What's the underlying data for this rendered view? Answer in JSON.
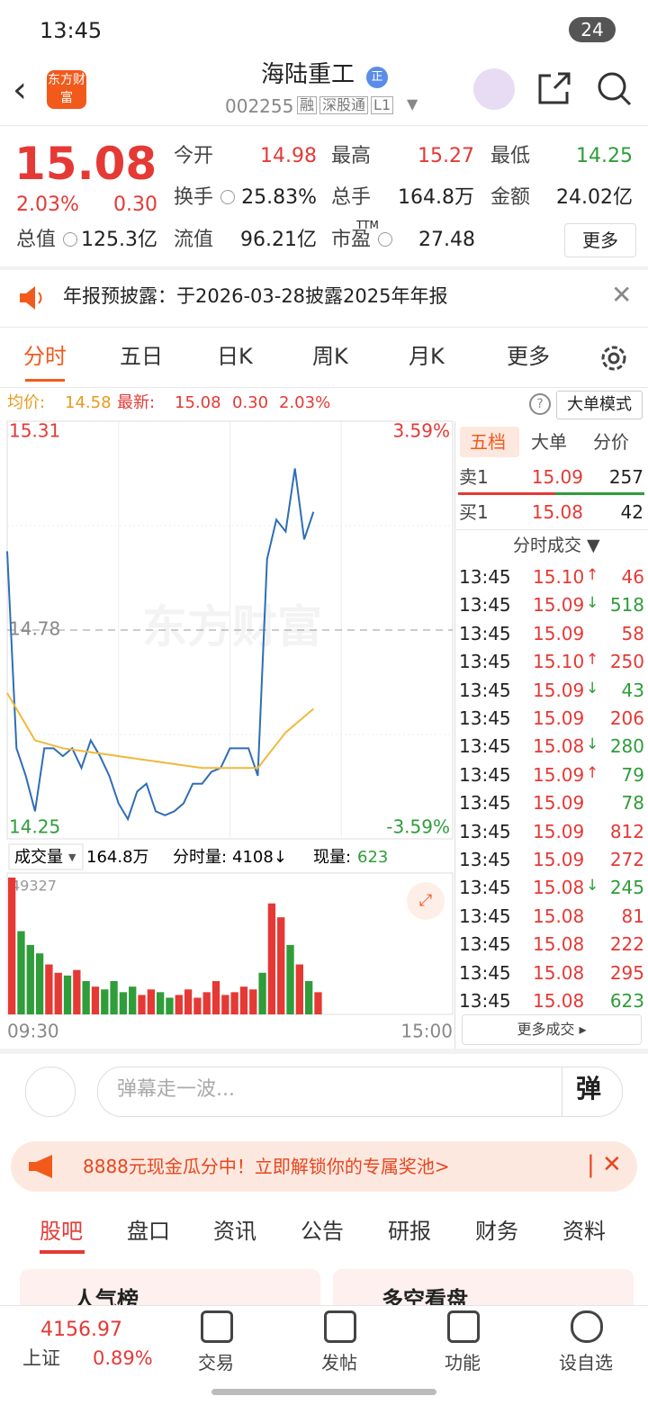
{
  "status": {
    "time": "13:45",
    "battery": "24"
  },
  "header": {
    "logo": "东方财富",
    "title": "海陆重工",
    "badge": "正",
    "code": "002255",
    "tags": [
      "融",
      "深股通",
      "L1"
    ]
  },
  "quote": {
    "price": "15.08",
    "pct": "2.03%",
    "change": "0.30",
    "fields": [
      {
        "label": "今开",
        "value": "14.98",
        "color": "#e53935"
      },
      {
        "label": "最高",
        "value": "15.27",
        "color": "#e53935"
      },
      {
        "label": "最低",
        "value": "14.25",
        "color": "#2e9d3a"
      },
      {
        "label": "换手",
        "value": "25.83%",
        "color": "#222222"
      },
      {
        "label": "总手",
        "value": "164.8万",
        "color": "#222222"
      },
      {
        "label": "金额",
        "value": "24.02亿",
        "color": "#222222"
      },
      {
        "label": "总值",
        "value": "125.3亿",
        "color": "#222222"
      },
      {
        "label": "流值",
        "value": "96.21亿",
        "color": "#222222"
      },
      {
        "label": "市盈",
        "value": "27.48",
        "color": "#222222"
      }
    ],
    "ttm": "TTM",
    "more": "更多"
  },
  "notice": "年报预披露：于2026-03-28披露2025年年报",
  "tabs": [
    "分时",
    "五日",
    "日K",
    "周K",
    "月K",
    "更多"
  ],
  "info": {
    "avg_label": "均价:",
    "avg": "14.58",
    "last_label": "最新:",
    "last": "15.08",
    "change": "0.30",
    "pct": "2.03%",
    "mode": "大单模式"
  },
  "watermark": "东方财富",
  "chart_data": {
    "type": "line",
    "ylim": [
      14.25,
      15.31
    ],
    "yticks": [
      15.31,
      14.78,
      14.25
    ],
    "y2lim": [
      -3.59,
      3.59
    ],
    "y2ticks": [
      {
        "value": 3.59,
        "label": "3.59%"
      },
      {
        "value": -3.59,
        "label": "-3.59%"
      }
    ],
    "xlim": [
      0,
      240
    ],
    "xticks": [
      {
        "value": 0,
        "label": "09:30"
      },
      {
        "value": 240,
        "label": "15:00"
      }
    ],
    "series": [
      {
        "color": "#2f6db5",
        "x": [
          0,
          5,
          10,
          15,
          20,
          25,
          30,
          35,
          40,
          45,
          50,
          55,
          60,
          65,
          70,
          75,
          80,
          85,
          90,
          95,
          100,
          105,
          110,
          115,
          120,
          125,
          130,
          135,
          140,
          145,
          150,
          155,
          160,
          165
        ],
        "values": [
          14.98,
          14.48,
          14.41,
          14.32,
          14.48,
          14.48,
          14.46,
          14.48,
          14.43,
          14.5,
          14.46,
          14.41,
          14.34,
          14.3,
          14.37,
          14.39,
          14.32,
          14.31,
          14.32,
          14.34,
          14.39,
          14.39,
          14.42,
          14.43,
          14.48,
          14.48,
          14.48,
          14.41,
          14.96,
          15.06,
          15.03,
          15.19,
          15.01,
          15.08
        ]
      },
      {
        "color": "#f0b93a",
        "x": [
          0,
          15,
          30,
          45,
          60,
          75,
          90,
          105,
          120,
          135,
          150,
          165
        ],
        "values": [
          14.62,
          14.5,
          14.48,
          14.47,
          14.46,
          14.45,
          14.44,
          14.43,
          14.43,
          14.43,
          14.52,
          14.58
        ]
      }
    ],
    "volume": {
      "label": "成交量",
      "total": "164.8万",
      "minute_label": "分时量:",
      "minute": "4108↓",
      "now_label": "现量:",
      "now": "623",
      "vlim": [
        0,
        49327
      ],
      "vticks": [
        49327
      ],
      "values": [
        49327,
        30000,
        25000,
        22000,
        18000,
        15000,
        14000,
        16000,
        12000,
        10000,
        9000,
        12000,
        8000,
        10000,
        7000,
        9000,
        8000,
        6000,
        7000,
        9000,
        6000,
        8000,
        12000,
        7000,
        8000,
        10000,
        9000,
        15000,
        40000,
        35000,
        25000,
        18000,
        12000,
        8000
      ]
    }
  },
  "book": {
    "tabs": [
      "五档",
      "大单",
      "分价"
    ],
    "sell": {
      "label": "卖1",
      "price": "15.09",
      "volume": "257"
    },
    "buy": {
      "label": "买1",
      "price": "15.08",
      "volume": "42"
    }
  },
  "trades": {
    "title": "分时成交 ▼",
    "more": "更多成交 ▸",
    "rows": [
      {
        "time": "13:45",
        "price": "15.10",
        "arrow": "↑",
        "volume": "46",
        "color": "#e53935"
      },
      {
        "time": "13:45",
        "price": "15.09",
        "arrow": "↓",
        "volume": "518",
        "color": "#2e9d3a"
      },
      {
        "time": "13:45",
        "price": "15.09",
        "volume": "58",
        "color": "#e53935"
      },
      {
        "time": "13:45",
        "price": "15.10",
        "arrow": "↑",
        "volume": "250",
        "color": "#e53935"
      },
      {
        "time": "13:45",
        "price": "15.09",
        "arrow": "↓",
        "volume": "43",
        "color": "#2e9d3a"
      },
      {
        "time": "13:45",
        "price": "15.09",
        "volume": "206",
        "color": "#e53935"
      },
      {
        "time": "13:45",
        "price": "15.08",
        "arrow": "↓",
        "volume": "280",
        "color": "#2e9d3a"
      },
      {
        "time": "13:45",
        "price": "15.09",
        "arrow": "↑",
        "volume": "79",
        "color": "#2e9d3a"
      },
      {
        "time": "13:45",
        "price": "15.09",
        "volume": "78",
        "color": "#2e9d3a"
      },
      {
        "time": "13:45",
        "price": "15.09",
        "volume": "812",
        "color": "#e53935"
      },
      {
        "time": "13:45",
        "price": "15.09",
        "volume": "272",
        "color": "#e53935"
      },
      {
        "time": "13:45",
        "price": "15.08",
        "arrow": "↓",
        "volume": "245",
        "color": "#2e9d3a"
      },
      {
        "time": "13:45",
        "price": "15.08",
        "volume": "81",
        "color": "#e53935"
      },
      {
        "time": "13:45",
        "price": "15.08",
        "volume": "222",
        "color": "#e53935"
      },
      {
        "time": "13:45",
        "price": "15.08",
        "volume": "295",
        "color": "#e53935"
      },
      {
        "time": "13:45",
        "price": "15.08",
        "volume": "623",
        "color": "#2e9d3a"
      }
    ]
  },
  "comment": {
    "placeholder": "弹幕走一波...",
    "button": "弹"
  },
  "ad": "8888元现金瓜分中！立即解锁你的专属奖池>",
  "section_tabs": [
    "股吧",
    "盘口",
    "资讯",
    "公告",
    "研报",
    "财务",
    "资料"
  ],
  "cards": [
    "人气榜",
    "多空看盘"
  ],
  "bottom": {
    "index_value": "4156.97",
    "index_name": "上证",
    "index_pct": "0.89%",
    "items": [
      "交易",
      "发帖",
      "功能",
      "设自选"
    ]
  }
}
